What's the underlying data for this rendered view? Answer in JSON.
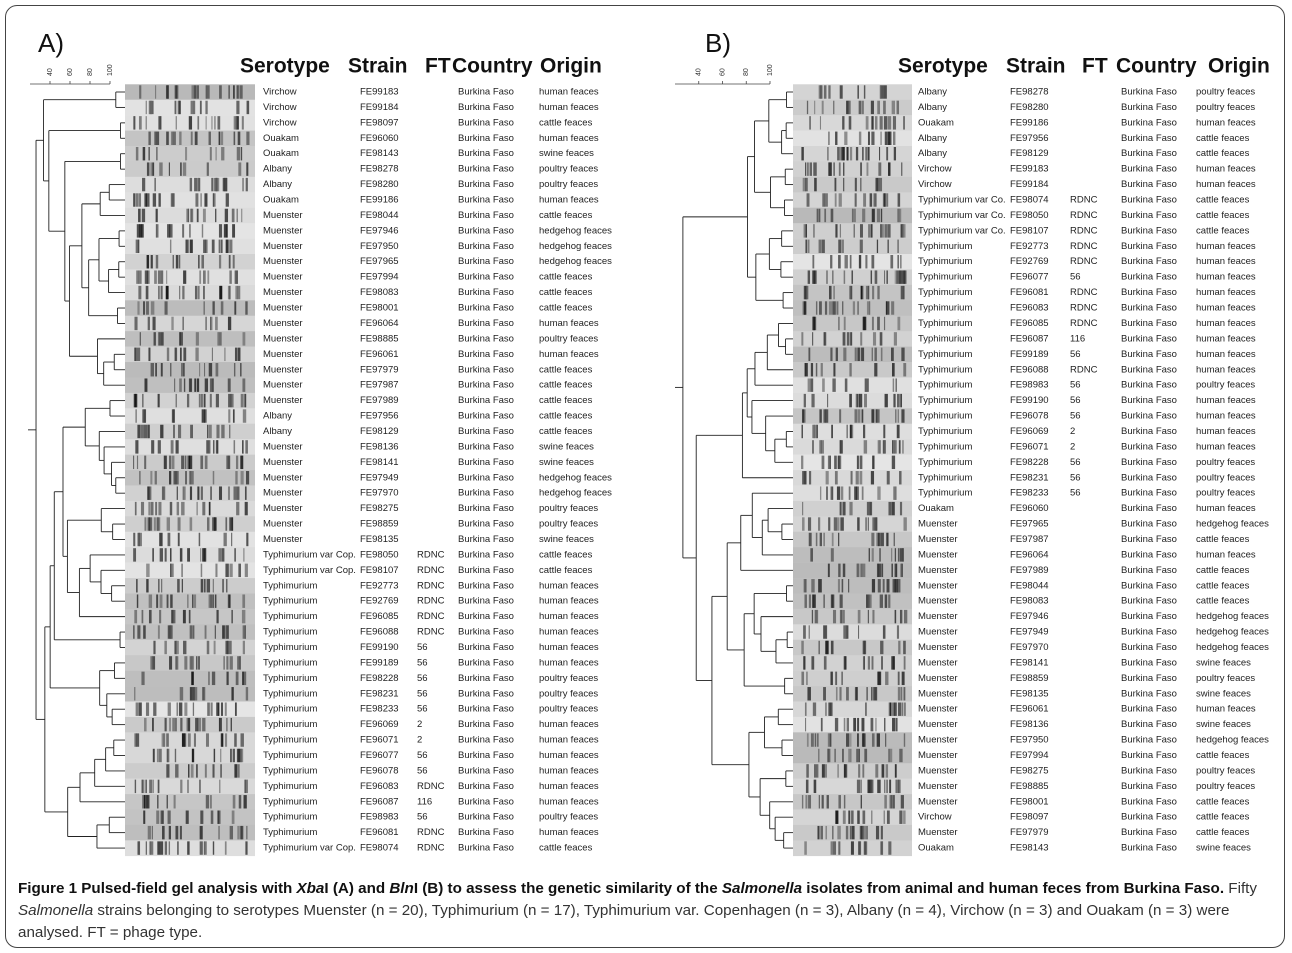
{
  "panels": [
    {
      "label": "A)",
      "scale": [
        40,
        60,
        80,
        100
      ],
      "headers": [
        "Serotype",
        "Strain",
        "FT",
        "Country",
        "Origin"
      ],
      "rows": [
        {
          "serotype": "Virchow",
          "strain": "FE99183",
          "country": "Burkina Faso",
          "origin": "human feaces"
        },
        {
          "serotype": "Virchow",
          "strain": "FE99184",
          "country": "Burkina Faso",
          "origin": "human feaces"
        },
        {
          "serotype": "Virchow",
          "strain": "FE98097",
          "country": "Burkina Faso",
          "origin": "cattle feaces"
        },
        {
          "serotype": "Ouakam",
          "strain": "FE96060",
          "country": "Burkina Faso",
          "origin": "human feaces"
        },
        {
          "serotype": "Ouakam",
          "strain": "FE98143",
          "country": "Burkina Faso",
          "origin": "swine feaces"
        },
        {
          "serotype": "Albany",
          "strain": "FE98278",
          "country": "Burkina Faso",
          "origin": "poultry feaces"
        },
        {
          "serotype": "Albany",
          "strain": "FE98280",
          "country": "Burkina Faso",
          "origin": "poultry feaces"
        },
        {
          "serotype": "Ouakam",
          "strain": "FE99186",
          "country": "Burkina Faso",
          "origin": "human feaces"
        },
        {
          "serotype": "Muenster",
          "strain": "FE98044",
          "country": "Burkina Faso",
          "origin": "cattle feaces"
        },
        {
          "serotype": "Muenster",
          "strain": "FE97946",
          "country": "Burkina Faso",
          "origin": "hedgehog feaces"
        },
        {
          "serotype": "Muenster",
          "strain": "FE97950",
          "country": "Burkina Faso",
          "origin": "hedgehog feaces"
        },
        {
          "serotype": "Muenster",
          "strain": "FE97965",
          "country": "Burkina Faso",
          "origin": "hedgehog feaces"
        },
        {
          "serotype": "Muenster",
          "strain": "FE97994",
          "country": "Burkina Faso",
          "origin": "cattle feaces"
        },
        {
          "serotype": "Muenster",
          "strain": "FE98083",
          "country": "Burkina Faso",
          "origin": "cattle feaces"
        },
        {
          "serotype": "Muenster",
          "strain": "FE98001",
          "country": "Burkina Faso",
          "origin": "cattle feaces"
        },
        {
          "serotype": "Muenster",
          "strain": "FE96064",
          "country": "Burkina Faso",
          "origin": "human feaces"
        },
        {
          "serotype": "Muenster",
          "strain": "FE98885",
          "country": "Burkina Faso",
          "origin": "poultry feaces"
        },
        {
          "serotype": "Muenster",
          "strain": "FE96061",
          "country": "Burkina Faso",
          "origin": "human feaces"
        },
        {
          "serotype": "Muenster",
          "strain": "FE97979",
          "country": "Burkina Faso",
          "origin": "cattle feaces"
        },
        {
          "serotype": "Muenster",
          "strain": "FE97987",
          "country": "Burkina Faso",
          "origin": "cattle feaces"
        },
        {
          "serotype": "Muenster",
          "strain": "FE97989",
          "country": "Burkina Faso",
          "origin": "cattle feaces"
        },
        {
          "serotype": "Albany",
          "strain": "FE97956",
          "country": "Burkina Faso",
          "origin": "cattle feaces"
        },
        {
          "serotype": "Albany",
          "strain": "FE98129",
          "country": "Burkina Faso",
          "origin": "cattle feaces"
        },
        {
          "serotype": "Muenster",
          "strain": "FE98136",
          "country": "Burkina Faso",
          "origin": "swine feaces"
        },
        {
          "serotype": "Muenster",
          "strain": "FE98141",
          "country": "Burkina Faso",
          "origin": "swine feaces"
        },
        {
          "serotype": "Muenster",
          "strain": "FE97949",
          "country": "Burkina Faso",
          "origin": "hedgehog feaces"
        },
        {
          "serotype": "Muenster",
          "strain": "FE97970",
          "country": "Burkina Faso",
          "origin": "hedgehog feaces"
        },
        {
          "serotype": "Muenster",
          "strain": "FE98275",
          "country": "Burkina Faso",
          "origin": "poultry feaces"
        },
        {
          "serotype": "Muenster",
          "strain": "FE98859",
          "country": "Burkina Faso",
          "origin": "poultry feaces"
        },
        {
          "serotype": "Muenster",
          "strain": "FE98135",
          "country": "Burkina Faso",
          "origin": "swine feaces"
        },
        {
          "serotype": "Typhimurium var Cop.",
          "strain": "FE98050",
          "ft": "RDNC",
          "country": "Burkina Faso",
          "origin": "cattle feaces"
        },
        {
          "serotype": "Typhimurium var Cop.",
          "strain": "FE98107",
          "ft": "RDNC",
          "country": "Burkina Faso",
          "origin": "cattle feaces"
        },
        {
          "serotype": "Typhimurium",
          "strain": "FE92773",
          "ft": "RDNC",
          "country": "Burkina Faso",
          "origin": "human feaces"
        },
        {
          "serotype": "Typhimurium",
          "strain": "FE92769",
          "ft": "RDNC",
          "country": "Burkina Faso",
          "origin": "human feaces"
        },
        {
          "serotype": "Typhimurium",
          "strain": "FE96085",
          "ft": "RDNC",
          "country": "Burkina Faso",
          "origin": "human feaces"
        },
        {
          "serotype": "Typhimurium",
          "strain": "FE96088",
          "ft": "RDNC",
          "country": "Burkina Faso",
          "origin": "human feaces"
        },
        {
          "serotype": "Typhimurium",
          "strain": "FE99190",
          "ft": "56",
          "country": "Burkina Faso",
          "origin": "human feaces"
        },
        {
          "serotype": "Typhimurium",
          "strain": "FE99189",
          "ft": "56",
          "country": "Burkina Faso",
          "origin": "human feaces"
        },
        {
          "serotype": "Typhimurium",
          "strain": "FE98228",
          "ft": "56",
          "country": "Burkina Faso",
          "origin": "poultry feaces"
        },
        {
          "serotype": "Typhimurium",
          "strain": "FE98231",
          "ft": "56",
          "country": "Burkina Faso",
          "origin": "poultry feaces"
        },
        {
          "serotype": "Typhimurium",
          "strain": "FE98233",
          "ft": "56",
          "country": "Burkina Faso",
          "origin": "poultry feaces"
        },
        {
          "serotype": "Typhimurium",
          "strain": "FE96069",
          "ft": "2",
          "country": "Burkina Faso",
          "origin": "human feaces"
        },
        {
          "serotype": "Typhimurium",
          "strain": "FE96071",
          "ft": "2",
          "country": "Burkina Faso",
          "origin": "human feaces"
        },
        {
          "serotype": "Typhimurium",
          "strain": "FE96077",
          "ft": "56",
          "country": "Burkina Faso",
          "origin": "human feaces"
        },
        {
          "serotype": "Typhimurium",
          "strain": "FE96078",
          "ft": "56",
          "country": "Burkina Faso",
          "origin": "human feaces"
        },
        {
          "serotype": "Typhimurium",
          "strain": "FE96083",
          "ft": "RDNC",
          "country": "Burkina Faso",
          "origin": "human feaces"
        },
        {
          "serotype": "Typhimurium",
          "strain": "FE96087",
          "ft": "116",
          "country": "Burkina Faso",
          "origin": "human feaces"
        },
        {
          "serotype": "Typhimurium",
          "strain": "FE98983",
          "ft": "56",
          "country": "Burkina Faso",
          "origin": "poultry feaces"
        },
        {
          "serotype": "Typhimurium",
          "strain": "FE96081",
          "ft": "RDNC",
          "country": "Burkina Faso",
          "origin": "human feaces"
        },
        {
          "serotype": "Typhimurium var Cop.",
          "strain": "FE98074",
          "ft": "RDNC",
          "country": "Burkina Faso",
          "origin": "cattle feaces"
        }
      ]
    },
    {
      "label": "B)",
      "scale": [
        40,
        60,
        80,
        100
      ],
      "headers": [
        "Serotype",
        "Strain",
        "FT",
        "Country",
        "Origin"
      ],
      "rows": [
        {
          "serotype": "Albany",
          "strain": "FE98278",
          "country": "Burkina Faso",
          "origin": "poultry feaces"
        },
        {
          "serotype": "Albany",
          "strain": "FE98280",
          "country": "Burkina Faso",
          "origin": "poultry feaces"
        },
        {
          "serotype": "Ouakam",
          "strain": "FE99186",
          "country": "Burkina Faso",
          "origin": "human feaces"
        },
        {
          "serotype": "Albany",
          "strain": "FE97956",
          "country": "Burkina Faso",
          "origin": "cattle feaces"
        },
        {
          "serotype": "Albany",
          "strain": "FE98129",
          "country": "Burkina Faso",
          "origin": "cattle feaces"
        },
        {
          "serotype": "Virchow",
          "strain": "FE99183",
          "country": "Burkina Faso",
          "origin": "human feaces"
        },
        {
          "serotype": "Virchow",
          "strain": "FE99184",
          "country": "Burkina Faso",
          "origin": "human feaces"
        },
        {
          "serotype": "Typhimurium var Co.",
          "strain": "FE98074",
          "ft": "RDNC",
          "country": "Burkina Faso",
          "origin": "cattle feaces"
        },
        {
          "serotype": "Typhimurium var Co.",
          "strain": "FE98050",
          "ft": "RDNC",
          "country": "Burkina Faso",
          "origin": "cattle feaces"
        },
        {
          "serotype": "Typhimurium var Co.",
          "strain": "FE98107",
          "ft": "RDNC",
          "country": "Burkina Faso",
          "origin": "cattle feaces"
        },
        {
          "serotype": "Typhimurium",
          "strain": "FE92773",
          "ft": "RDNC",
          "country": "Burkina Faso",
          "origin": "human feaces"
        },
        {
          "serotype": "Typhimurium",
          "strain": "FE92769",
          "ft": "RDNC",
          "country": "Burkina Faso",
          "origin": "human feaces"
        },
        {
          "serotype": "Typhimurium",
          "strain": "FE96077",
          "ft": "56",
          "country": "Burkina Faso",
          "origin": "human feaces"
        },
        {
          "serotype": "Typhimurium",
          "strain": "FE96081",
          "ft": "RDNC",
          "country": "Burkina Faso",
          "origin": "human feaces"
        },
        {
          "serotype": "Typhimurium",
          "strain": "FE96083",
          "ft": "RDNC",
          "country": "Burkina Faso",
          "origin": "human feaces"
        },
        {
          "serotype": "Typhimurium",
          "strain": "FE96085",
          "ft": "RDNC",
          "country": "Burkina Faso",
          "origin": "human feaces"
        },
        {
          "serotype": "Typhimurium",
          "strain": "FE96087",
          "ft": "116",
          "country": "Burkina Faso",
          "origin": "human feaces"
        },
        {
          "serotype": "Typhimurium",
          "strain": "FE99189",
          "ft": "56",
          "country": "Burkina Faso",
          "origin": "human feaces"
        },
        {
          "serotype": "Typhimurium",
          "strain": "FE96088",
          "ft": "RDNC",
          "country": "Burkina Faso",
          "origin": "human feaces"
        },
        {
          "serotype": "Typhimurium",
          "strain": "FE98983",
          "ft": "56",
          "country": "Burkina Faso",
          "origin": "poultry feaces"
        },
        {
          "serotype": "Typhimurium",
          "strain": "FE99190",
          "ft": "56",
          "country": "Burkina Faso",
          "origin": "human feaces"
        },
        {
          "serotype": "Typhimurium",
          "strain": "FE96078",
          "ft": "56",
          "country": "Burkina Faso",
          "origin": "human feaces"
        },
        {
          "serotype": "Typhimurium",
          "strain": "FE96069",
          "ft": "2",
          "country": "Burkina Faso",
          "origin": "human feaces"
        },
        {
          "serotype": "Typhimurium",
          "strain": "FE96071",
          "ft": "2",
          "country": "Burkina Faso",
          "origin": "human feaces"
        },
        {
          "serotype": "Typhimurium",
          "strain": "FE98228",
          "ft": "56",
          "country": "Burkina Faso",
          "origin": "poultry feaces"
        },
        {
          "serotype": "Typhimurium",
          "strain": "FE98231",
          "ft": "56",
          "country": "Burkina Faso",
          "origin": "poultry feaces"
        },
        {
          "serotype": "Typhimurium",
          "strain": "FE98233",
          "ft": "56",
          "country": "Burkina Faso",
          "origin": "poultry feaces"
        },
        {
          "serotype": "Ouakam",
          "strain": "FE96060",
          "country": "Burkina Faso",
          "origin": "human feaces"
        },
        {
          "serotype": "Muenster",
          "strain": "FE97965",
          "country": "Burkina Faso",
          "origin": "hedgehog feaces"
        },
        {
          "serotype": "Muenster",
          "strain": "FE97987",
          "country": "Burkina Faso",
          "origin": "cattle feaces"
        },
        {
          "serotype": "Muenster",
          "strain": "FE96064",
          "country": "Burkina Faso",
          "origin": "human feaces"
        },
        {
          "serotype": "Muenster",
          "strain": "FE97989",
          "country": "Burkina Faso",
          "origin": "cattle feaces"
        },
        {
          "serotype": "Muenster",
          "strain": "FE98044",
          "country": "Burkina Faso",
          "origin": "cattle feaces"
        },
        {
          "serotype": "Muenster",
          "strain": "FE98083",
          "country": "Burkina Faso",
          "origin": "cattle feaces"
        },
        {
          "serotype": "Muenster",
          "strain": "FE97946",
          "country": "Burkina Faso",
          "origin": "hedgehog feaces"
        },
        {
          "serotype": "Muenster",
          "strain": "FE97949",
          "country": "Burkina Faso",
          "origin": "hedgehog feaces"
        },
        {
          "serotype": "Muenster",
          "strain": "FE97970",
          "country": "Burkina Faso",
          "origin": "hedgehog feaces"
        },
        {
          "serotype": "Muenster",
          "strain": "FE98141",
          "country": "Burkina Faso",
          "origin": "swine feaces"
        },
        {
          "serotype": "Muenster",
          "strain": "FE98859",
          "country": "Burkina Faso",
          "origin": "poultry feaces"
        },
        {
          "serotype": "Muenster",
          "strain": "FE98135",
          "country": "Burkina Faso",
          "origin": "swine feaces"
        },
        {
          "serotype": "Muenster",
          "strain": "FE96061",
          "country": "Burkina Faso",
          "origin": "human feaces"
        },
        {
          "serotype": "Muenster",
          "strain": "FE98136",
          "country": "Burkina Faso",
          "origin": "swine feaces"
        },
        {
          "serotype": "Muenster",
          "strain": "FE97950",
          "country": "Burkina Faso",
          "origin": "hedgehog feaces"
        },
        {
          "serotype": "Muenster",
          "strain": "FE97994",
          "country": "Burkina Faso",
          "origin": "cattle feaces"
        },
        {
          "serotype": "Muenster",
          "strain": "FE98275",
          "country": "Burkina Faso",
          "origin": "poultry feaces"
        },
        {
          "serotype": "Muenster",
          "strain": "FE98885",
          "country": "Burkina Faso",
          "origin": "poultry feaces"
        },
        {
          "serotype": "Muenster",
          "strain": "FE98001",
          "country": "Burkina Faso",
          "origin": "cattle feaces"
        },
        {
          "serotype": "Virchow",
          "strain": "FE98097",
          "country": "Burkina Faso",
          "origin": "cattle feaces"
        },
        {
          "serotype": "Muenster",
          "strain": "FE97979",
          "country": "Burkina Faso",
          "origin": "cattle feaces"
        },
        {
          "serotype": "Ouakam",
          "strain": "FE98143",
          "country": "Burkina Faso",
          "origin": "swine feaces"
        }
      ]
    }
  ],
  "caption": {
    "title": [
      "Figure 1 Pulsed-field gel analysis with ",
      "Xba",
      "I (A) and ",
      "Bln",
      "I (B) to assess the genetic similarity of the ",
      "Salmonella",
      " isolates from animal and human feces from Burkina Faso."
    ],
    "body": [
      "Fifty ",
      "Salmonella",
      " strains belonging to serotypes Muenster (n = 20), Typhimurium (n = 17), Typhimurium var. Copenhagen (n = 3), Albany (n = 4), Virchow (n = 3) and Ouakam (n = 3) were analysed. FT = phage type."
    ]
  }
}
